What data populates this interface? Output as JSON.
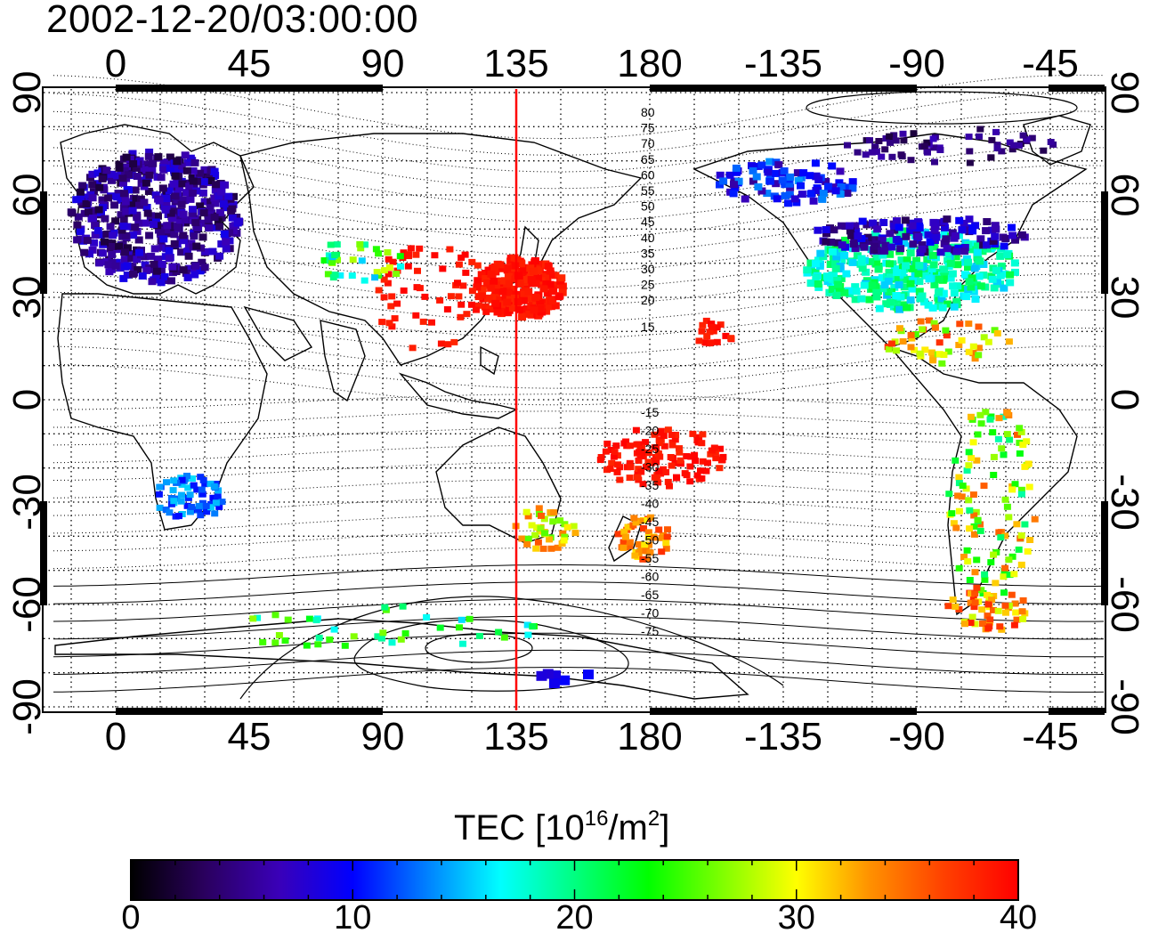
{
  "title": "2002-12-20/03:00:00",
  "map": {
    "top_lon_labels": [
      "0",
      "45",
      "90",
      "135",
      "180",
      "-135",
      "-90",
      "-45"
    ],
    "bottom_lon_labels": [
      "0",
      "45",
      "90",
      "135",
      "180",
      "-135",
      "-90",
      "-45"
    ],
    "left_lat_labels": [
      "90",
      "60",
      "30",
      "0",
      "-30",
      "-60",
      "-90"
    ],
    "right_lat_labels": [
      "90",
      "60",
      "30",
      "0",
      "-30",
      "-60",
      "-90"
    ],
    "marker_longitude": 135,
    "marker_color": "#ff0000",
    "north_contour_labels": [
      "80",
      "75",
      "70",
      "65",
      "60",
      "55",
      "50",
      "45",
      "40",
      "35",
      "30",
      "25",
      "20",
      "15"
    ],
    "south_contour_labels": [
      "-15",
      "-20",
      "-25",
      "-30",
      "-35",
      "-40",
      "-45",
      "-50",
      "-55",
      "-60",
      "-65",
      "-70",
      "-75"
    ]
  },
  "colorbar": {
    "title_prefix": "TEC  [10",
    "title_exp1": "16",
    "title_mid": "/m",
    "title_exp2": "2",
    "title_suffix": "]",
    "labels": [
      "0",
      "10",
      "20",
      "30",
      "40"
    ],
    "min": 0,
    "max": 40,
    "stops": [
      "#000000",
      "#2a005e",
      "#3a00b8",
      "#0000ff",
      "#0080ff",
      "#00ffff",
      "#00ff80",
      "#00ff00",
      "#80ff00",
      "#ffff00",
      "#ff9000",
      "#ff4000",
      "#ff0000"
    ]
  }
}
